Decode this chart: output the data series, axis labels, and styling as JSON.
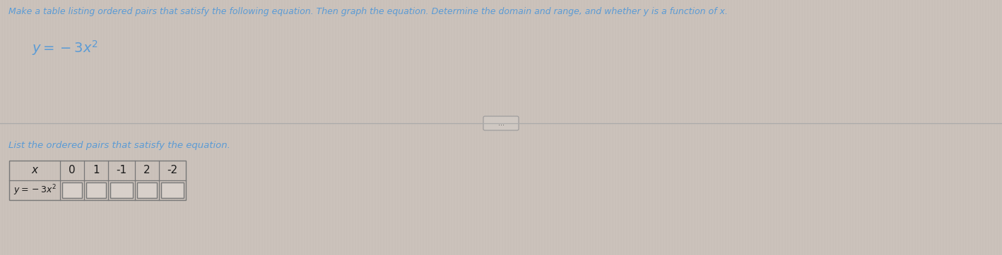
{
  "title_line": "Make a table listing ordered pairs that satisfy the following equation. Then graph the equation. Determine the domain and range, and whether y is a function of x.",
  "equation_latex": "$y = -3x^2$",
  "subtitle": "List the ordered pairs that satisfy the equation.",
  "x_values": [
    "x",
    "0",
    "1",
    "-1",
    "2",
    "-2"
  ],
  "row2_label_latex": "$y = -3x^2$",
  "bg_color": "#c9c0b9",
  "stripe_color": "#cac1ba",
  "text_color_blue": "#5b9bd5",
  "table_text_color": "#1a1a1a",
  "divider_line_color": "#aaaaaa",
  "table_border_color": "#777777",
  "box_fill_color": "#d8d0ca",
  "title_fontsize": 9.0,
  "equation_fontsize": 14,
  "subtitle_fontsize": 9.5,
  "table_fontsize": 11,
  "row2_fontsize": 9
}
